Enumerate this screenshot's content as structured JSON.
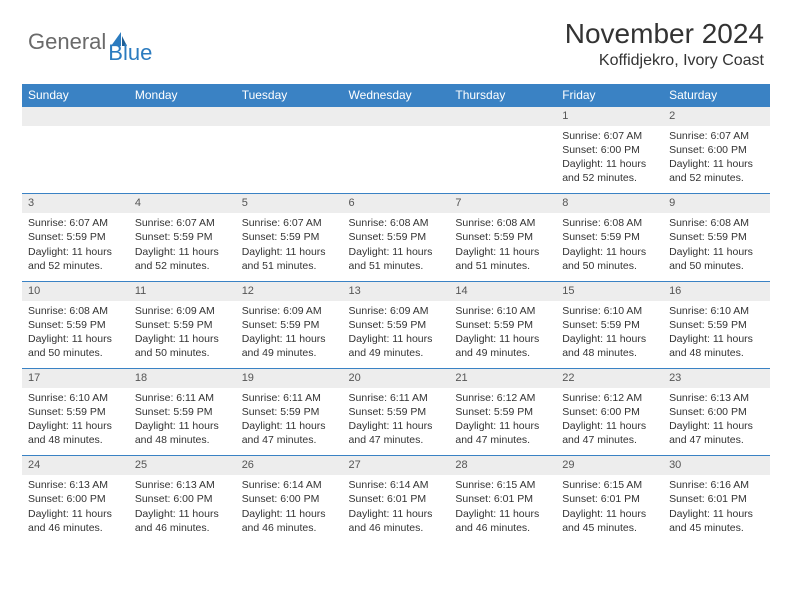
{
  "brand": {
    "part1": "General",
    "part2": "Blue"
  },
  "title": "November 2024",
  "location": "Koffidjekro, Ivory Coast",
  "colors": {
    "header_bg": "#3a82c4",
    "header_text": "#ffffff",
    "daynum_bg": "#ededed",
    "border": "#3a82c4",
    "brand_gray": "#6a6a6a",
    "brand_blue": "#2b7bbf",
    "text": "#333333"
  },
  "day_headers": [
    "Sunday",
    "Monday",
    "Tuesday",
    "Wednesday",
    "Thursday",
    "Friday",
    "Saturday"
  ],
  "weeks": [
    {
      "nums": [
        "",
        "",
        "",
        "",
        "",
        "1",
        "2"
      ],
      "cells": [
        {
          "sunrise": "",
          "sunset": "",
          "daylight": ""
        },
        {
          "sunrise": "",
          "sunset": "",
          "daylight": ""
        },
        {
          "sunrise": "",
          "sunset": "",
          "daylight": ""
        },
        {
          "sunrise": "",
          "sunset": "",
          "daylight": ""
        },
        {
          "sunrise": "",
          "sunset": "",
          "daylight": ""
        },
        {
          "sunrise": "Sunrise: 6:07 AM",
          "sunset": "Sunset: 6:00 PM",
          "daylight": "Daylight: 11 hours and 52 minutes."
        },
        {
          "sunrise": "Sunrise: 6:07 AM",
          "sunset": "Sunset: 6:00 PM",
          "daylight": "Daylight: 11 hours and 52 minutes."
        }
      ]
    },
    {
      "nums": [
        "3",
        "4",
        "5",
        "6",
        "7",
        "8",
        "9"
      ],
      "cells": [
        {
          "sunrise": "Sunrise: 6:07 AM",
          "sunset": "Sunset: 5:59 PM",
          "daylight": "Daylight: 11 hours and 52 minutes."
        },
        {
          "sunrise": "Sunrise: 6:07 AM",
          "sunset": "Sunset: 5:59 PM",
          "daylight": "Daylight: 11 hours and 52 minutes."
        },
        {
          "sunrise": "Sunrise: 6:07 AM",
          "sunset": "Sunset: 5:59 PM",
          "daylight": "Daylight: 11 hours and 51 minutes."
        },
        {
          "sunrise": "Sunrise: 6:08 AM",
          "sunset": "Sunset: 5:59 PM",
          "daylight": "Daylight: 11 hours and 51 minutes."
        },
        {
          "sunrise": "Sunrise: 6:08 AM",
          "sunset": "Sunset: 5:59 PM",
          "daylight": "Daylight: 11 hours and 51 minutes."
        },
        {
          "sunrise": "Sunrise: 6:08 AM",
          "sunset": "Sunset: 5:59 PM",
          "daylight": "Daylight: 11 hours and 50 minutes."
        },
        {
          "sunrise": "Sunrise: 6:08 AM",
          "sunset": "Sunset: 5:59 PM",
          "daylight": "Daylight: 11 hours and 50 minutes."
        }
      ]
    },
    {
      "nums": [
        "10",
        "11",
        "12",
        "13",
        "14",
        "15",
        "16"
      ],
      "cells": [
        {
          "sunrise": "Sunrise: 6:08 AM",
          "sunset": "Sunset: 5:59 PM",
          "daylight": "Daylight: 11 hours and 50 minutes."
        },
        {
          "sunrise": "Sunrise: 6:09 AM",
          "sunset": "Sunset: 5:59 PM",
          "daylight": "Daylight: 11 hours and 50 minutes."
        },
        {
          "sunrise": "Sunrise: 6:09 AM",
          "sunset": "Sunset: 5:59 PM",
          "daylight": "Daylight: 11 hours and 49 minutes."
        },
        {
          "sunrise": "Sunrise: 6:09 AM",
          "sunset": "Sunset: 5:59 PM",
          "daylight": "Daylight: 11 hours and 49 minutes."
        },
        {
          "sunrise": "Sunrise: 6:10 AM",
          "sunset": "Sunset: 5:59 PM",
          "daylight": "Daylight: 11 hours and 49 minutes."
        },
        {
          "sunrise": "Sunrise: 6:10 AM",
          "sunset": "Sunset: 5:59 PM",
          "daylight": "Daylight: 11 hours and 48 minutes."
        },
        {
          "sunrise": "Sunrise: 6:10 AM",
          "sunset": "Sunset: 5:59 PM",
          "daylight": "Daylight: 11 hours and 48 minutes."
        }
      ]
    },
    {
      "nums": [
        "17",
        "18",
        "19",
        "20",
        "21",
        "22",
        "23"
      ],
      "cells": [
        {
          "sunrise": "Sunrise: 6:10 AM",
          "sunset": "Sunset: 5:59 PM",
          "daylight": "Daylight: 11 hours and 48 minutes."
        },
        {
          "sunrise": "Sunrise: 6:11 AM",
          "sunset": "Sunset: 5:59 PM",
          "daylight": "Daylight: 11 hours and 48 minutes."
        },
        {
          "sunrise": "Sunrise: 6:11 AM",
          "sunset": "Sunset: 5:59 PM",
          "daylight": "Daylight: 11 hours and 47 minutes."
        },
        {
          "sunrise": "Sunrise: 6:11 AM",
          "sunset": "Sunset: 5:59 PM",
          "daylight": "Daylight: 11 hours and 47 minutes."
        },
        {
          "sunrise": "Sunrise: 6:12 AM",
          "sunset": "Sunset: 5:59 PM",
          "daylight": "Daylight: 11 hours and 47 minutes."
        },
        {
          "sunrise": "Sunrise: 6:12 AM",
          "sunset": "Sunset: 6:00 PM",
          "daylight": "Daylight: 11 hours and 47 minutes."
        },
        {
          "sunrise": "Sunrise: 6:13 AM",
          "sunset": "Sunset: 6:00 PM",
          "daylight": "Daylight: 11 hours and 47 minutes."
        }
      ]
    },
    {
      "nums": [
        "24",
        "25",
        "26",
        "27",
        "28",
        "29",
        "30"
      ],
      "cells": [
        {
          "sunrise": "Sunrise: 6:13 AM",
          "sunset": "Sunset: 6:00 PM",
          "daylight": "Daylight: 11 hours and 46 minutes."
        },
        {
          "sunrise": "Sunrise: 6:13 AM",
          "sunset": "Sunset: 6:00 PM",
          "daylight": "Daylight: 11 hours and 46 minutes."
        },
        {
          "sunrise": "Sunrise: 6:14 AM",
          "sunset": "Sunset: 6:00 PM",
          "daylight": "Daylight: 11 hours and 46 minutes."
        },
        {
          "sunrise": "Sunrise: 6:14 AM",
          "sunset": "Sunset: 6:01 PM",
          "daylight": "Daylight: 11 hours and 46 minutes."
        },
        {
          "sunrise": "Sunrise: 6:15 AM",
          "sunset": "Sunset: 6:01 PM",
          "daylight": "Daylight: 11 hours and 46 minutes."
        },
        {
          "sunrise": "Sunrise: 6:15 AM",
          "sunset": "Sunset: 6:01 PM",
          "daylight": "Daylight: 11 hours and 45 minutes."
        },
        {
          "sunrise": "Sunrise: 6:16 AM",
          "sunset": "Sunset: 6:01 PM",
          "daylight": "Daylight: 11 hours and 45 minutes."
        }
      ]
    }
  ]
}
